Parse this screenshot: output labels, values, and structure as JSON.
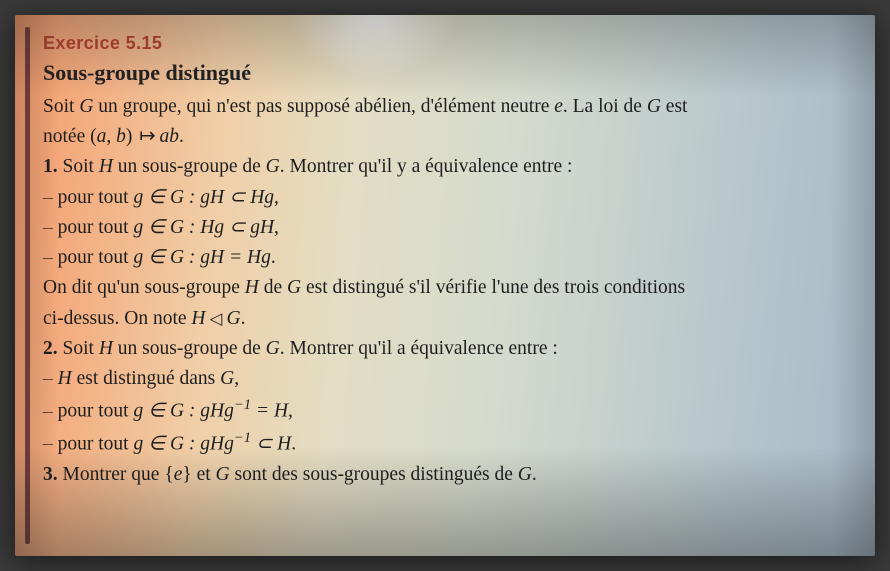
{
  "exercise_label": "Exercice 5.15",
  "title": "Sous-groupe distingué",
  "intro1": "Soit ",
  "intro1_it1": "G",
  "intro1b": " un groupe, qui n'est pas supposé abélien, d'élément neutre ",
  "intro1_it2": "e",
  "intro1c": ". La loi de ",
  "intro1_it3": "G",
  "intro1d": " est",
  "intro2a": "notée (",
  "intro2_it_a": "a",
  "intro2_comma": ", ",
  "intro2_it_b": "b",
  "intro2b": ") ",
  "intro2c": " ",
  "intro2_it_ab": "ab",
  "intro2d": ".",
  "q1a": "1.",
  "q1b": " Soit ",
  "q1_it1": "H",
  "q1c": " un sous-groupe de ",
  "q1_it2": "G",
  "q1d": ". Montrer qu'il y a équivalence entre :",
  "b1a": "pour tout ",
  "b1_m": "g ∈ G  :  gH  ⊂  Hg",
  "b1z": ",",
  "b2a": "pour tout ",
  "b2_m": "g ∈ G  :  Hg  ⊂  gH",
  "b2z": ",",
  "b3a": "pour tout ",
  "b3_m": "g ∈ G  :  gH  =  Hg",
  "b3z": ".",
  "def1a": "On dit qu'un sous-groupe ",
  "def1_it1": "H",
  "def1b": " de ",
  "def1_it2": "G",
  "def1c": " est distingué s'il vérifie l'une des trois conditions",
  "def2a": "ci-dessus. On note ",
  "def2_m": "H",
  "def2_tri": " ◁ ",
  "def2_m2": "G",
  "def2z": ".",
  "q2a": "2.",
  "q2b": " Soit ",
  "q2_it1": "H",
  "q2c": " un sous-groupe de ",
  "q2_it2": "G",
  "q2d": ". Montrer qu'il a équivalence entre :",
  "c1_it": "H",
  "c1b": " est distingué dans ",
  "c1_it2": "G",
  "c1z": ",",
  "c2a": "pour tout ",
  "c2_m1": "g ∈ G  :  gHg",
  "c2_exp": "−1",
  "c2_m2": "  =  H",
  "c2z": ",",
  "c3a": "pour tout ",
  "c3_m1": "g ∈ G  :  gHg",
  "c3_exp": "−1",
  "c3_m2": "  ⊂  H",
  "c3z": ".",
  "q3a": "3.",
  "q3b": " Montrer que ",
  "q3_br1": "{",
  "q3_it_e": "e",
  "q3_br2": "}",
  "q3c": " et ",
  "q3_it_G": "G",
  "q3d": " sont des sous-groupes distingués de ",
  "q3_it_G2": "G",
  "q3z": "."
}
